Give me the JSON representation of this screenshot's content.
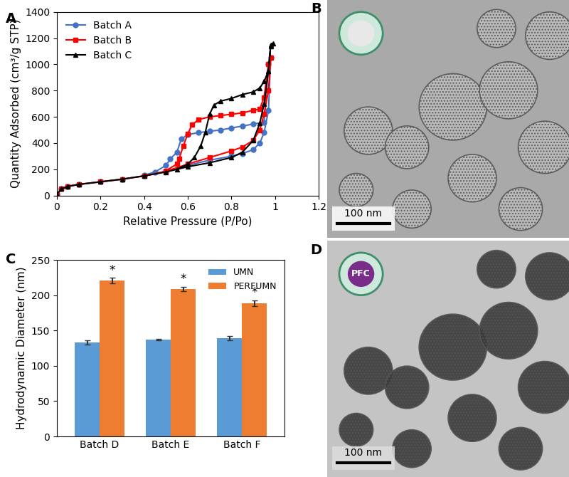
{
  "chart_data": [
    {
      "type": "line",
      "title": "A",
      "x_label": "Relative Pressure (P/Po)",
      "y_label": "Quantity Adsorbed (cm³/g STP)",
      "xlim": [
        0,
        1.2
      ],
      "xticks": [
        0,
        0.2,
        0.4,
        0.6,
        0.8,
        1,
        1.2
      ],
      "ylim": [
        0,
        1400
      ],
      "yticks": [
        0,
        200,
        400,
        600,
        800,
        1000,
        1200,
        1400
      ],
      "legend": "upper left",
      "grid": false,
      "series": [
        {
          "name": "Batch A",
          "color": "#4472c4",
          "marker": "o",
          "x": [
            0,
            0.02,
            0.05,
            0.1,
            0.2,
            0.3,
            0.4,
            0.5,
            0.6,
            0.7,
            0.8,
            0.85,
            0.9,
            0.93,
            0.95,
            0.97,
            0.98,
            0.97,
            0.95,
            0.9,
            0.85,
            0.8,
            0.75,
            0.7,
            0.65,
            0.6,
            0.57,
            0.55,
            0.52,
            0.5,
            0.45,
            0.4
          ],
          "values": [
            10,
            50,
            70,
            85,
            105,
            125,
            150,
            185,
            230,
            270,
            300,
            320,
            350,
            400,
            480,
            650,
            1050,
            1000,
            560,
            545,
            530,
            515,
            500,
            490,
            480,
            465,
            430,
            330,
            280,
            230,
            180,
            155
          ]
        },
        {
          "name": "Batch B",
          "color": "#ff0000",
          "marker": "s",
          "x": [
            0,
            0.02,
            0.05,
            0.1,
            0.2,
            0.3,
            0.4,
            0.5,
            0.6,
            0.7,
            0.8,
            0.85,
            0.9,
            0.93,
            0.95,
            0.97,
            0.98,
            0.97,
            0.95,
            0.93,
            0.9,
            0.85,
            0.8,
            0.75,
            0.7,
            0.65,
            0.62,
            0.6,
            0.58,
            0.56,
            0.55,
            0.5
          ],
          "values": [
            10,
            50,
            70,
            85,
            105,
            125,
            150,
            185,
            240,
            290,
            340,
            370,
            420,
            500,
            620,
            800,
            1050,
            1000,
            750,
            660,
            650,
            630,
            620,
            610,
            600,
            580,
            540,
            470,
            380,
            280,
            240,
            190
          ]
        },
        {
          "name": "Batch C",
          "color": "#000000",
          "marker": "^",
          "x": [
            0,
            0.02,
            0.05,
            0.1,
            0.2,
            0.3,
            0.4,
            0.5,
            0.6,
            0.7,
            0.8,
            0.85,
            0.9,
            0.93,
            0.95,
            0.97,
            0.98,
            0.99,
            0.98,
            0.97,
            0.95,
            0.93,
            0.9,
            0.85,
            0.8,
            0.75,
            0.72,
            0.7,
            0.68,
            0.66,
            0.63,
            0.6,
            0.55
          ],
          "values": [
            10,
            50,
            70,
            85,
            105,
            125,
            150,
            180,
            220,
            250,
            290,
            330,
            420,
            550,
            700,
            950,
            1150,
            1160,
            1140,
            950,
            870,
            820,
            790,
            770,
            740,
            720,
            690,
            620,
            480,
            380,
            290,
            240,
            200
          ]
        }
      ]
    },
    {
      "type": "bar",
      "title": "C",
      "y_label": "Hydrodynamic Diameter (nm)",
      "categories": [
        "Batch D",
        "Batch E",
        "Batch F"
      ],
      "ylim": [
        0,
        250
      ],
      "yticks": [
        0,
        50,
        100,
        150,
        200,
        250
      ],
      "legend": "upper right",
      "grid": false,
      "series": [
        {
          "name": "UMN",
          "color": "#5b9bd5",
          "values": [
            133,
            137,
            139
          ],
          "errors": [
            3,
            1,
            3
          ]
        },
        {
          "name": "PERFUMN",
          "color": "#ed7d31",
          "values": [
            221,
            209,
            189
          ],
          "errors": [
            4,
            3,
            4
          ],
          "significance": [
            "*",
            "*",
            "*"
          ]
        }
      ]
    }
  ],
  "images": [
    {
      "title": "B",
      "scale_bar": "100 nm"
    },
    {
      "title": "D",
      "scale_bar": "100 nm",
      "inset_label": "PFC"
    }
  ]
}
